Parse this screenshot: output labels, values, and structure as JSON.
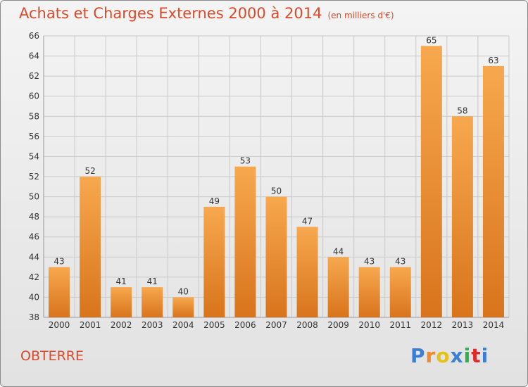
{
  "header": {
    "title": "Achats et Charges Externes 2000 à 2014",
    "subtitle": "(en milliers d'€)"
  },
  "footer": {
    "place": "OBTERRE",
    "brand": "Proxiti",
    "brand_colors": [
      "#3a7fd5",
      "#f08a24",
      "#e4c21a",
      "#3a7fd5",
      "#2bb24c",
      "#e02a2a",
      "#3a7fd5"
    ]
  },
  "colors": {
    "bar_light": "#f7a84e",
    "bar_dark": "#d8741c",
    "grid": "#c9c9c9",
    "axis": "#999999",
    "title": "#d94a2a"
  },
  "chart_data": {
    "type": "bar",
    "title": "Achats et Charges Externes 2000 à 2014",
    "subtitle": "(en milliers d'€)",
    "xlabel": "",
    "ylabel": "",
    "categories": [
      "2000",
      "2001",
      "2002",
      "2003",
      "2004",
      "2005",
      "2006",
      "2007",
      "2008",
      "2009",
      "2010",
      "2011",
      "2012",
      "2013",
      "2014"
    ],
    "values": [
      43,
      52,
      41,
      41,
      40,
      49,
      53,
      50,
      47,
      44,
      43,
      43,
      65,
      58,
      63
    ],
    "ylim": [
      38,
      66
    ],
    "yticks": [
      38,
      40,
      42,
      44,
      46,
      48,
      50,
      52,
      54,
      56,
      58,
      60,
      62,
      64,
      66
    ],
    "grid": true,
    "data_labels": true
  }
}
